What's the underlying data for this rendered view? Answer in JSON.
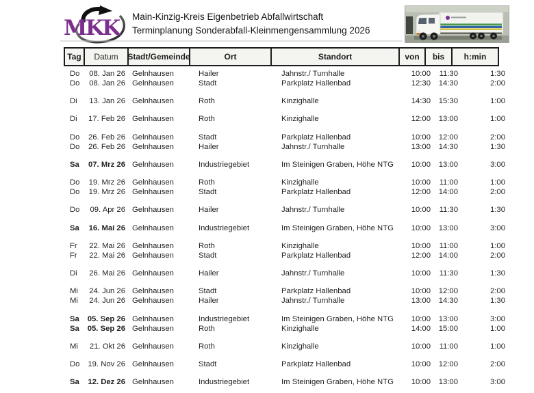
{
  "document": {
    "logo_text": "MKK",
    "title_line1": "Main-Kinzig-Kreis Eigenbetrieb Abfallwirtschaft",
    "title_line2": "Terminplanung Sonderabfall-Kleinmengensammlung 2026"
  },
  "colors": {
    "logo_purple": "#7b2f8e",
    "header_cell_bg": "#f4f5f0",
    "border_black": "#1c1c1c",
    "truck_stripe_green": "#4a9655",
    "truck_stripe_blue": "#3464a8",
    "truck_stripe_yellow": "#cfc23e"
  },
  "table": {
    "headers": {
      "tag": "Tag",
      "datum": "Datum",
      "stadt": "Stadt/Gemeinde",
      "ort": "Ort",
      "standort": "Standort",
      "von": "von",
      "bis": "bis",
      "hmin": "h:min"
    },
    "groups": [
      {
        "rows": [
          {
            "tag": "Do",
            "datum": "08. Jan 26",
            "stadt": "Gelnhausen",
            "ort": "Hailer",
            "standort": "Jahnstr./ Turnhalle",
            "von": "10:00",
            "bis": "11:30",
            "hmin": "1:30",
            "bold": false
          },
          {
            "tag": "Do",
            "datum": "08. Jan 26",
            "stadt": "Gelnhausen",
            "ort": "Stadt",
            "standort": "Parkplatz Hallenbad",
            "von": "12:30",
            "bis": "14:30",
            "hmin": "2:00",
            "bold": false
          }
        ]
      },
      {
        "rows": [
          {
            "tag": "Di",
            "datum": "13. Jan 26",
            "stadt": "Gelnhausen",
            "ort": "Roth",
            "standort": "Kinzighalle",
            "von": "14:30",
            "bis": "15:30",
            "hmin": "1:00",
            "bold": false
          }
        ]
      },
      {
        "rows": [
          {
            "tag": "Di",
            "datum": "17. Feb 26",
            "stadt": "Gelnhausen",
            "ort": "Roth",
            "standort": "Kinzighalle",
            "von": "12:00",
            "bis": "13:00",
            "hmin": "1:00",
            "bold": false
          }
        ]
      },
      {
        "rows": [
          {
            "tag": "Do",
            "datum": "26. Feb 26",
            "stadt": "Gelnhausen",
            "ort": "Stadt",
            "standort": "Parkplatz Hallenbad",
            "von": "10:00",
            "bis": "12:00",
            "hmin": "2:00",
            "bold": false
          },
          {
            "tag": "Do",
            "datum": "26. Feb 26",
            "stadt": "Gelnhausen",
            "ort": "Hailer",
            "standort": "Jahnstr./ Turnhalle",
            "von": "13:00",
            "bis": "14:30",
            "hmin": "1:30",
            "bold": false
          }
        ]
      },
      {
        "rows": [
          {
            "tag": "Sa",
            "datum": "07. Mrz 26",
            "stadt": "Gelnhausen",
            "ort": "Industriegebiet",
            "standort": "Im Steinigen Graben, Höhe NTG",
            "von": "10:00",
            "bis": "13:00",
            "hmin": "3:00",
            "bold": true
          }
        ]
      },
      {
        "rows": [
          {
            "tag": "Do",
            "datum": "19. Mrz 26",
            "stadt": "Gelnhausen",
            "ort": "Roth",
            "standort": "Kinzighalle",
            "von": "10:00",
            "bis": "11:00",
            "hmin": "1:00",
            "bold": false
          },
          {
            "tag": "Do",
            "datum": "19. Mrz 26",
            "stadt": "Gelnhausen",
            "ort": "Stadt",
            "standort": "Parkplatz Hallenbad",
            "von": "12:00",
            "bis": "14:00",
            "hmin": "2:00",
            "bold": false
          }
        ]
      },
      {
        "rows": [
          {
            "tag": "Do",
            "datum": "09. Apr 26",
            "stadt": "Gelnhausen",
            "ort": "Hailer",
            "standort": "Jahnstr./ Turnhalle",
            "von": "10:00",
            "bis": "11:30",
            "hmin": "1:30",
            "bold": false
          }
        ]
      },
      {
        "rows": [
          {
            "tag": "Sa",
            "datum": "16. Mai 26",
            "stadt": "Gelnhausen",
            "ort": "Industriegebiet",
            "standort": "Im Steinigen Graben, Höhe NTG",
            "von": "10:00",
            "bis": "13:00",
            "hmin": "3:00",
            "bold": true
          }
        ]
      },
      {
        "rows": [
          {
            "tag": "Fr",
            "datum": "22. Mai 26",
            "stadt": "Gelnhausen",
            "ort": "Roth",
            "standort": "Kinzighalle",
            "von": "10:00",
            "bis": "11:00",
            "hmin": "1:00",
            "bold": false
          },
          {
            "tag": "Fr",
            "datum": "22. Mai 26",
            "stadt": "Gelnhausen",
            "ort": "Stadt",
            "standort": "Parkplatz Hallenbad",
            "von": "12:00",
            "bis": "14:00",
            "hmin": "2:00",
            "bold": false
          }
        ]
      },
      {
        "rows": [
          {
            "tag": "Di",
            "datum": "26. Mai 26",
            "stadt": "Gelnhausen",
            "ort": "Hailer",
            "standort": "Jahnstr./ Turnhalle",
            "von": "10:00",
            "bis": "11:30",
            "hmin": "1:30",
            "bold": false
          }
        ]
      },
      {
        "rows": [
          {
            "tag": "Mi",
            "datum": "24. Jun 26",
            "stadt": "Gelnhausen",
            "ort": "Stadt",
            "standort": "Parkplatz Hallenbad",
            "von": "10:00",
            "bis": "12:00",
            "hmin": "2:00",
            "bold": false
          },
          {
            "tag": "Mi",
            "datum": "24. Jun 26",
            "stadt": "Gelnhausen",
            "ort": "Hailer",
            "standort": "Jahnstr./ Turnhalle",
            "von": "13:00",
            "bis": "14:30",
            "hmin": "1:30",
            "bold": false
          }
        ]
      },
      {
        "rows": [
          {
            "tag": "Sa",
            "datum": "05. Sep 26",
            "stadt": "Gelnhausen",
            "ort": "Industriegebiet",
            "standort": "Im Steinigen Graben, Höhe NTG",
            "von": "10:00",
            "bis": "13:00",
            "hmin": "3:00",
            "bold": true
          },
          {
            "tag": "Sa",
            "datum": "05. Sep 26",
            "stadt": "Gelnhausen",
            "ort": "Roth",
            "standort": "Kinzighalle",
            "von": "14:00",
            "bis": "15:00",
            "hmin": "1:00",
            "bold": true
          }
        ]
      },
      {
        "rows": [
          {
            "tag": "Mi",
            "datum": "21. Okt 26",
            "stadt": "Gelnhausen",
            "ort": "Roth",
            "standort": "Kinzighalle",
            "von": "10:00",
            "bis": "11:00",
            "hmin": "1:00",
            "bold": false
          }
        ]
      },
      {
        "rows": [
          {
            "tag": "Do",
            "datum": "19. Nov 26",
            "stadt": "Gelnhausen",
            "ort": "Stadt",
            "standort": "Parkplatz Hallenbad",
            "von": "10:00",
            "bis": "12:00",
            "hmin": "2:00",
            "bold": false
          }
        ]
      },
      {
        "rows": [
          {
            "tag": "Sa",
            "datum": "12. Dez 26",
            "stadt": "Gelnhausen",
            "ort": "Industriegebiet",
            "standort": "Im Steinigen Graben, Höhe NTG",
            "von": "10:00",
            "bis": "13:00",
            "hmin": "3:00",
            "bold": true
          }
        ]
      }
    ]
  }
}
